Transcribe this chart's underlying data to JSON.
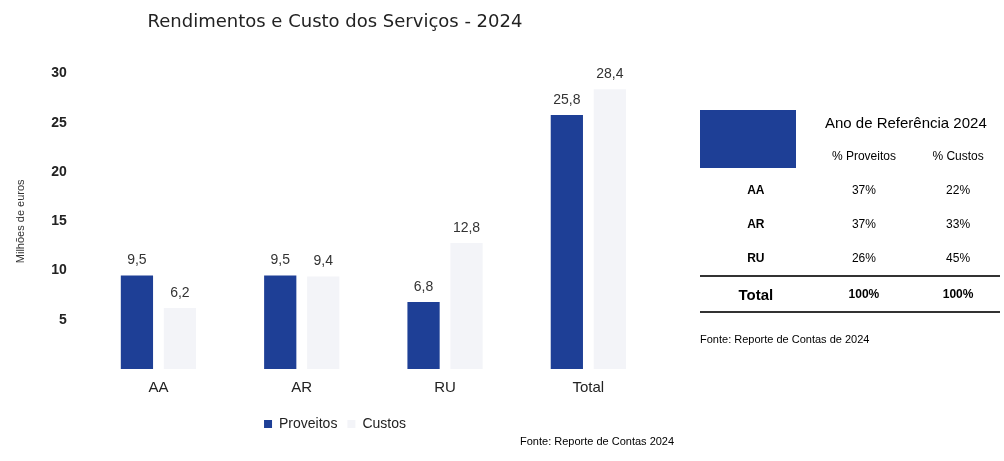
{
  "chart_data": [
    {
      "type": "bar",
      "title": "Rendimentos e Custo dos Serviços - 2024",
      "ylabel": "Milhões de euros",
      "categories": [
        "AA",
        "AR",
        "RU",
        "Total"
      ],
      "series": [
        {
          "name": "Proveitos",
          "color": "#1e3f96",
          "values": [
            9.5,
            9.5,
            6.8,
            25.8
          ],
          "value_labels": [
            "9,5",
            "9,5",
            "6,8",
            "25,8"
          ]
        },
        {
          "name": "Custos",
          "color": "#f3f4f8",
          "values": [
            6.2,
            9.4,
            12.8,
            28.4
          ],
          "value_labels": [
            "6,2",
            "9,4",
            "12,8",
            "28,4"
          ]
        }
      ],
      "ylim": [
        0,
        30
      ],
      "yticks": [
        5,
        10,
        15,
        20,
        25,
        30
      ],
      "grid": false,
      "legend": "bottom",
      "annotations": [
        "Fonte: Reporte de Contas 2024"
      ]
    },
    {
      "type": "other",
      "title": "Ano de Referência 2024",
      "categories": [
        "% Proveitos",
        "% Custos"
      ],
      "y_categories": [
        "AA",
        "AR",
        "RU",
        "Total"
      ],
      "cell_labels": [
        [
          "37%",
          "22%"
        ],
        [
          "37%",
          "33%"
        ],
        [
          "26%",
          "45%"
        ],
        [
          "100%",
          "100%"
        ]
      ],
      "annotations": [
        "Fonte: Reporte de Contas de 2024"
      ]
    }
  ]
}
